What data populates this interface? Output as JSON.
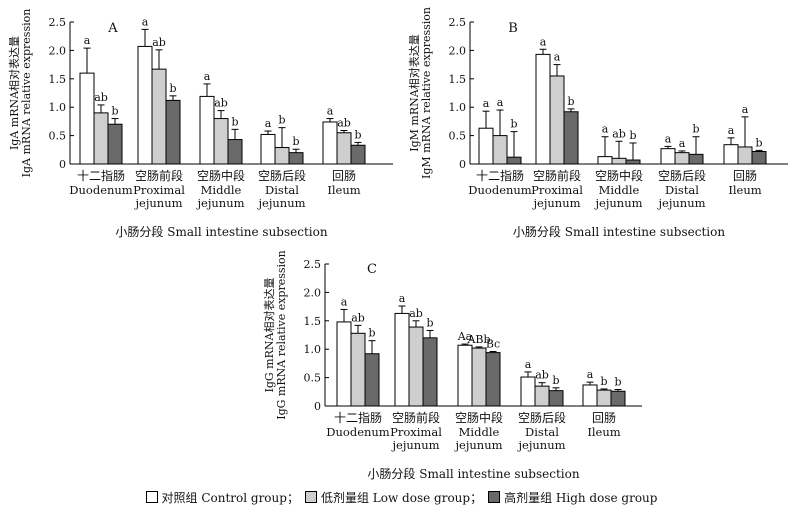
{
  "legend": {
    "items": [
      {
        "label": "对照组 Control group；",
        "color": "#ffffff"
      },
      {
        "label": "低剂量组 Low dose group；",
        "color": "#cfcfcf"
      },
      {
        "label": "高剂量组 High dose group",
        "color": "#6a6a6a"
      }
    ]
  },
  "chart_data": [
    {
      "type": "bar",
      "panel": "A",
      "ylabel_cn": "IgA mRNA相对表达量",
      "ylabel_en": "IgA mRNA relative expression",
      "xlabel": "小肠分段 Small intestine subsection",
      "ylim": [
        0,
        2.5
      ],
      "yticks": [
        "0",
        "0.5",
        "1.0",
        "1.5",
        "2.0",
        "2.5"
      ],
      "categories": [
        {
          "cn": "十二指肠",
          "en": [
            "Duodenum"
          ]
        },
        {
          "cn": "空肠前段",
          "en": [
            "Proximal",
            "jejunum"
          ]
        },
        {
          "cn": "空肠中段",
          "en": [
            "Middle",
            "jejunum"
          ]
        },
        {
          "cn": "空肠后段",
          "en": [
            "Distal",
            "jejunum"
          ]
        },
        {
          "cn": "回肠",
          "en": [
            "Ileum"
          ]
        }
      ],
      "series": [
        {
          "name": "Control group",
          "values": [
            1.6,
            2.07,
            1.19,
            0.52,
            0.74
          ],
          "errors": [
            0.44,
            0.3,
            0.22,
            0.06,
            0.06
          ],
          "letters": [
            "a",
            "a",
            "a",
            "a",
            "a"
          ]
        },
        {
          "name": "Low dose group",
          "values": [
            0.9,
            1.67,
            0.8,
            0.29,
            0.55
          ],
          "errors": [
            0.14,
            0.34,
            0.14,
            0.35,
            0.04
          ],
          "letters": [
            "ab",
            "ab",
            "ab",
            "b",
            "ab"
          ]
        },
        {
          "name": "High dose group",
          "values": [
            0.7,
            1.12,
            0.43,
            0.2,
            0.33
          ],
          "errors": [
            0.1,
            0.08,
            0.18,
            0.06,
            0.05
          ],
          "letters": [
            "b",
            "b",
            "b",
            "b",
            "b"
          ]
        }
      ]
    },
    {
      "type": "bar",
      "panel": "B",
      "ylabel_cn": "IgM mRNA相对表达量",
      "ylabel_en": "IgM mRNA relative expression",
      "xlabel": "小肠分段 Small intestine subsection",
      "ylim": [
        0,
        2.5
      ],
      "yticks": [
        "0",
        "0.5",
        "1.0",
        "1.5",
        "2.0",
        "2.5"
      ],
      "categories": [
        {
          "cn": "十二指肠",
          "en": [
            "Duodenum"
          ]
        },
        {
          "cn": "空肠前段",
          "en": [
            "Proximal",
            "jejunum"
          ]
        },
        {
          "cn": "空肠中段",
          "en": [
            "Middle",
            "jejunum"
          ]
        },
        {
          "cn": "空肠后段",
          "en": [
            "Distal",
            "jejunum"
          ]
        },
        {
          "cn": "回肠",
          "en": [
            "Ileum"
          ]
        }
      ],
      "series": [
        {
          "name": "Control group",
          "values": [
            0.63,
            1.93,
            0.13,
            0.27,
            0.34
          ],
          "errors": [
            0.3,
            0.09,
            0.35,
            0.04,
            0.12
          ],
          "letters": [
            "a",
            "a",
            "a",
            "a",
            "a"
          ]
        },
        {
          "name": "Low dose group",
          "values": [
            0.5,
            1.55,
            0.1,
            0.2,
            0.3
          ],
          "errors": [
            0.45,
            0.2,
            0.3,
            0.03,
            0.53
          ],
          "letters": [
            "a",
            "a",
            "ab",
            "a",
            "a"
          ]
        },
        {
          "name": "High dose group",
          "values": [
            0.12,
            0.92,
            0.07,
            0.17,
            0.22
          ],
          "errors": [
            0.45,
            0.05,
            0.3,
            0.31,
            0.02
          ],
          "letters": [
            "b",
            "b",
            "b",
            "b",
            "b"
          ]
        }
      ]
    },
    {
      "type": "bar",
      "panel": "C",
      "ylabel_cn": "IgG mRNA相对表达量",
      "ylabel_en": "IgG mRNA relative expression",
      "xlabel": "小肠分段 Small intestine subsection",
      "ylim": [
        0,
        2.5
      ],
      "yticks": [
        "0",
        "0.5",
        "1.0",
        "1.5",
        "2.0",
        "2.5"
      ],
      "categories": [
        {
          "cn": "十二指肠",
          "en": [
            "Duodenum"
          ]
        },
        {
          "cn": "空肠前段",
          "en": [
            "Proximal",
            "jejunum"
          ]
        },
        {
          "cn": "空肠中段",
          "en": [
            "Middle",
            "jejunum"
          ]
        },
        {
          "cn": "空肠后段",
          "en": [
            "Distal",
            "jejunum"
          ]
        },
        {
          "cn": "回肠",
          "en": [
            "Ileum"
          ]
        }
      ],
      "series": [
        {
          "name": "Control group",
          "values": [
            1.48,
            1.63,
            1.07,
            0.51,
            0.37
          ],
          "errors": [
            0.22,
            0.13,
            0.02,
            0.09,
            0.05
          ],
          "letters": [
            "a",
            "a",
            "Aa",
            "a",
            "a"
          ]
        },
        {
          "name": "Low dose group",
          "values": [
            1.28,
            1.39,
            1.02,
            0.35,
            0.28
          ],
          "errors": [
            0.14,
            0.11,
            0.02,
            0.06,
            0.02
          ],
          "letters": [
            "ab",
            "ab",
            "ABb",
            "ab",
            "b"
          ]
        },
        {
          "name": "High dose group",
          "values": [
            0.92,
            1.2,
            0.94,
            0.27,
            0.26
          ],
          "errors": [
            0.23,
            0.13,
            0.02,
            0.05,
            0.03
          ],
          "letters": [
            "b",
            "b",
            "Bc",
            "b",
            "b"
          ]
        }
      ]
    }
  ]
}
